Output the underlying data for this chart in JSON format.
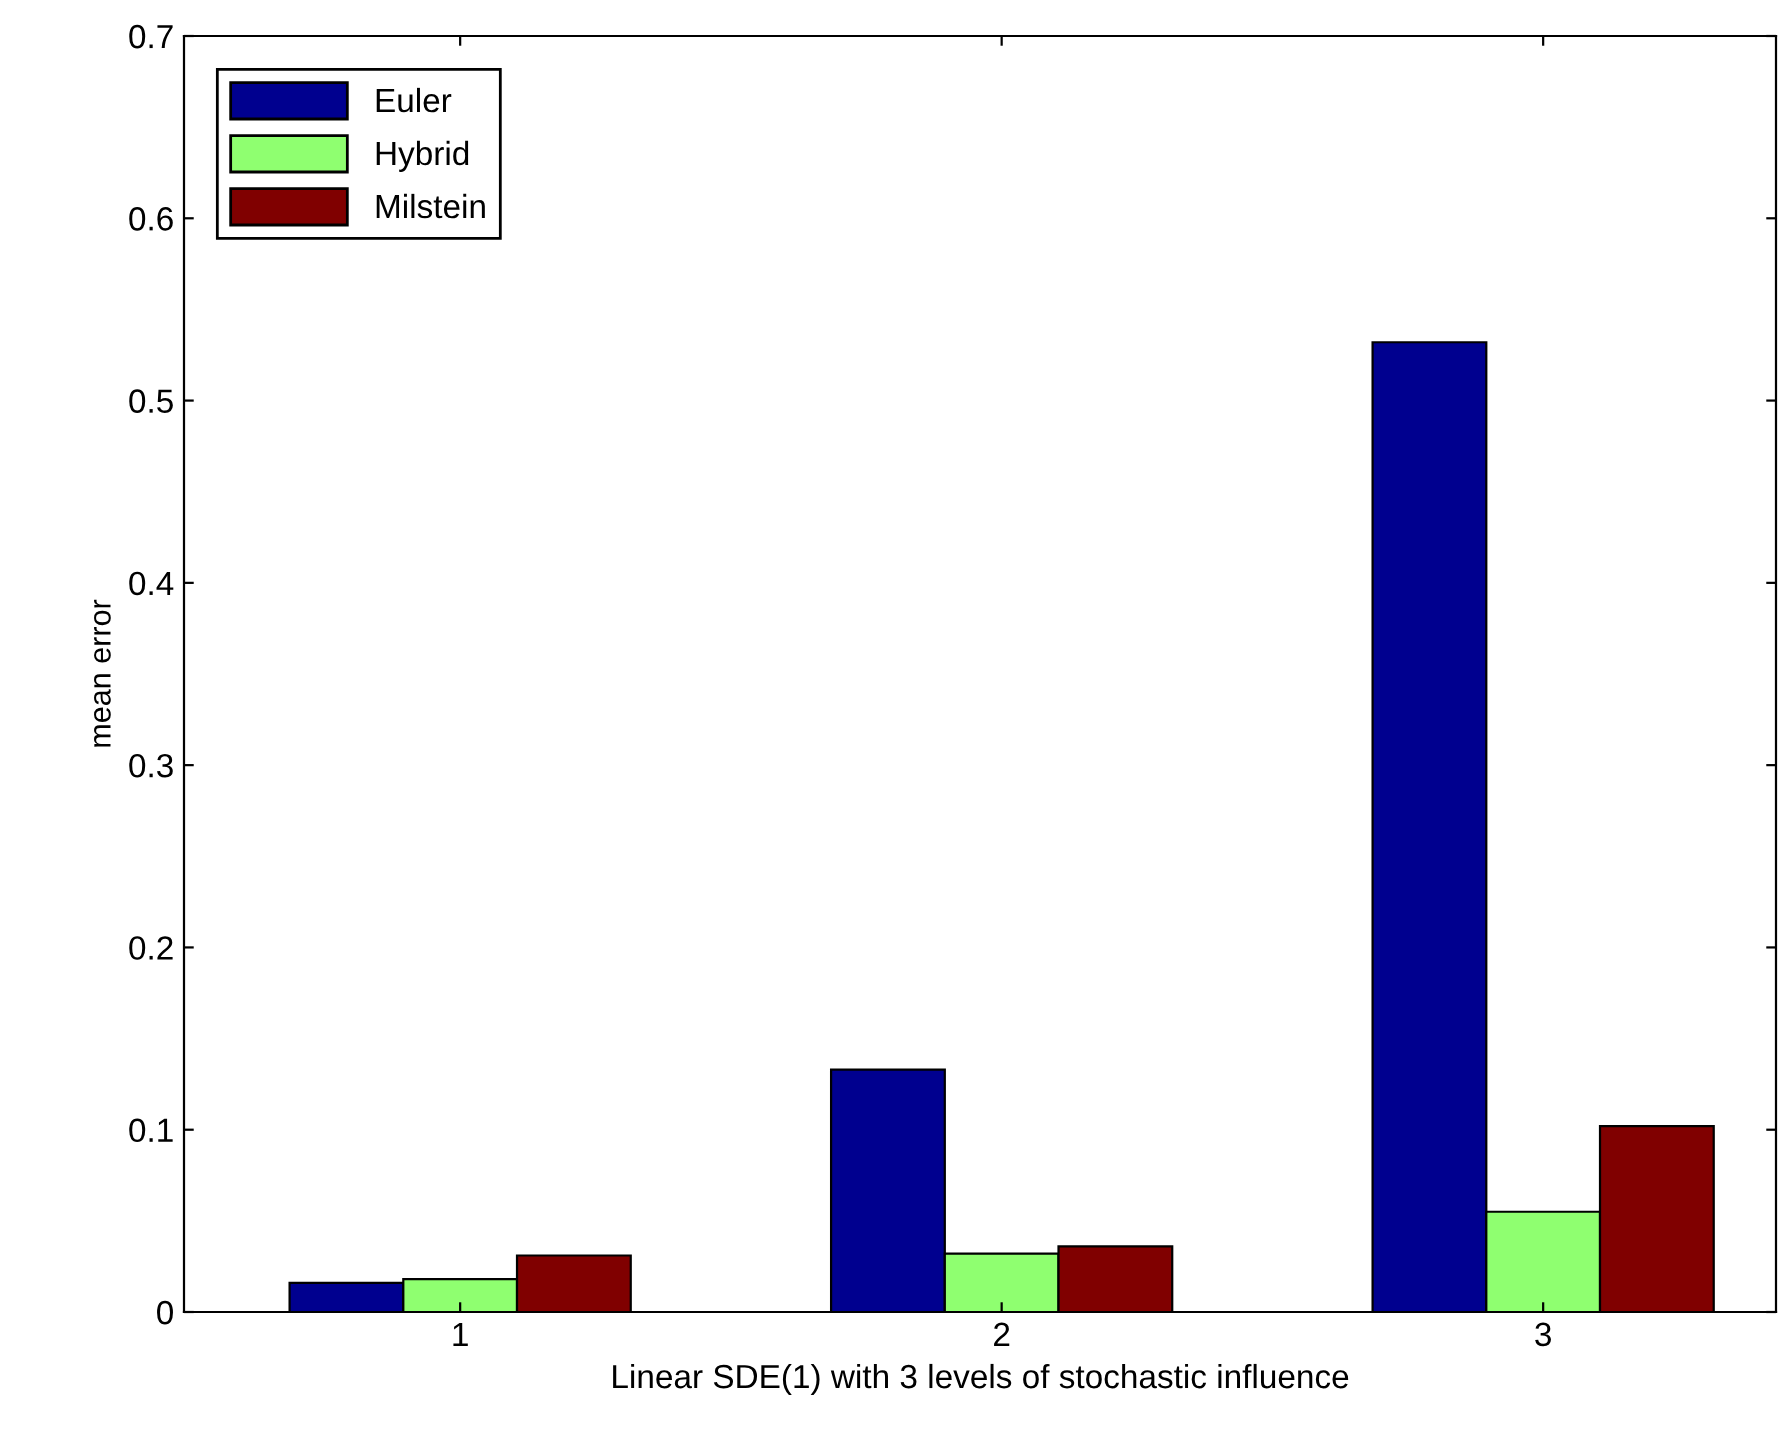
{
  "chart_data": {
    "type": "bar",
    "xlabel": "Linear SDE(1) with 3 levels of stochastic influence",
    "ylabel": "mean error",
    "categories": [
      "1",
      "2",
      "3"
    ],
    "series": [
      {
        "name": "Euler",
        "color": "#00008f",
        "values": [
          0.016,
          0.133,
          0.532
        ]
      },
      {
        "name": "Hybrid",
        "color": "#8fff70",
        "values": [
          0.018,
          0.032,
          0.055
        ]
      },
      {
        "name": "Milstein",
        "color": "#800000",
        "values": [
          0.031,
          0.036,
          0.102
        ]
      }
    ],
    "ylim": [
      0,
      0.7
    ],
    "yticks": [
      0,
      0.1,
      0.2,
      0.3,
      0.4,
      0.5,
      0.6,
      0.7
    ],
    "grid": false,
    "legend": "top left"
  }
}
